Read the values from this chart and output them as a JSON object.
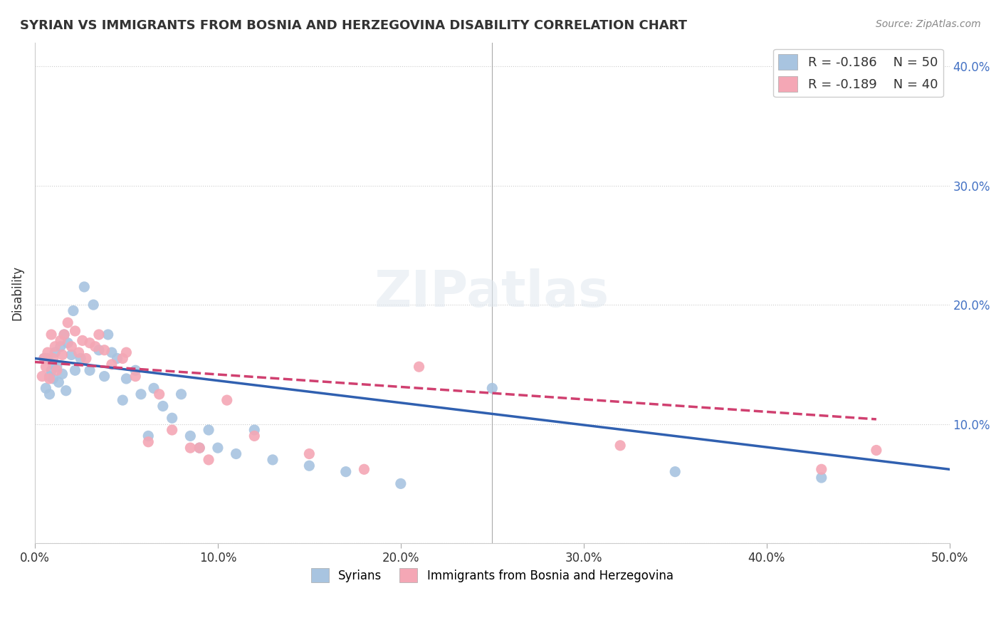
{
  "title": "SYRIAN VS IMMIGRANTS FROM BOSNIA AND HERZEGOVINA DISABILITY CORRELATION CHART",
  "source": "Source: ZipAtlas.com",
  "ylabel": "Disability",
  "xlim": [
    0.0,
    0.5
  ],
  "ylim": [
    0.0,
    0.42
  ],
  "xticks": [
    0.0,
    0.1,
    0.2,
    0.3,
    0.4,
    0.5
  ],
  "yticks": [
    0.0,
    0.1,
    0.2,
    0.3,
    0.4
  ],
  "xtick_labels": [
    "0.0%",
    "10.0%",
    "20.0%",
    "30.0%",
    "40.0%",
    "50.0%"
  ],
  "ytick_labels_right": [
    "",
    "10.0%",
    "20.0%",
    "30.0%",
    "40.0%"
  ],
  "legend_r1": "R = -0.186",
  "legend_n1": "N = 50",
  "legend_r2": "R = -0.189",
  "legend_n2": "N = 40",
  "blue_color": "#a8c4e0",
  "pink_color": "#f4a7b5",
  "blue_line_color": "#3060b0",
  "pink_line_color": "#d04070",
  "watermark": "ZIPatlas",
  "syrians_x": [
    0.005,
    0.006,
    0.007,
    0.008,
    0.008,
    0.009,
    0.01,
    0.01,
    0.011,
    0.012,
    0.013,
    0.014,
    0.015,
    0.016,
    0.017,
    0.018,
    0.02,
    0.021,
    0.022,
    0.025,
    0.027,
    0.03,
    0.032,
    0.035,
    0.038,
    0.04,
    0.042,
    0.045,
    0.048,
    0.05,
    0.055,
    0.058,
    0.062,
    0.065,
    0.07,
    0.075,
    0.08,
    0.085,
    0.09,
    0.095,
    0.1,
    0.11,
    0.12,
    0.13,
    0.15,
    0.17,
    0.2,
    0.25,
    0.35,
    0.43
  ],
  "syrians_y": [
    0.155,
    0.13,
    0.155,
    0.14,
    0.125,
    0.145,
    0.138,
    0.15,
    0.16,
    0.148,
    0.135,
    0.165,
    0.142,
    0.175,
    0.128,
    0.168,
    0.158,
    0.195,
    0.145,
    0.155,
    0.215,
    0.145,
    0.2,
    0.162,
    0.14,
    0.175,
    0.16,
    0.155,
    0.12,
    0.138,
    0.145,
    0.125,
    0.09,
    0.13,
    0.115,
    0.105,
    0.125,
    0.09,
    0.08,
    0.095,
    0.08,
    0.075,
    0.095,
    0.07,
    0.065,
    0.06,
    0.05,
    0.13,
    0.06,
    0.055
  ],
  "bosnia_x": [
    0.004,
    0.005,
    0.006,
    0.007,
    0.008,
    0.009,
    0.01,
    0.011,
    0.012,
    0.014,
    0.015,
    0.016,
    0.018,
    0.02,
    0.022,
    0.024,
    0.026,
    0.028,
    0.03,
    0.033,
    0.035,
    0.038,
    0.042,
    0.048,
    0.05,
    0.055,
    0.062,
    0.068,
    0.075,
    0.085,
    0.09,
    0.095,
    0.105,
    0.12,
    0.15,
    0.18,
    0.21,
    0.32,
    0.43,
    0.46
  ],
  "bosnia_y": [
    0.14,
    0.155,
    0.148,
    0.16,
    0.138,
    0.175,
    0.155,
    0.165,
    0.145,
    0.17,
    0.158,
    0.175,
    0.185,
    0.165,
    0.178,
    0.16,
    0.17,
    0.155,
    0.168,
    0.165,
    0.175,
    0.162,
    0.15,
    0.155,
    0.16,
    0.14,
    0.085,
    0.125,
    0.095,
    0.08,
    0.08,
    0.07,
    0.12,
    0.09,
    0.075,
    0.062,
    0.148,
    0.082,
    0.062,
    0.078
  ],
  "blue_trendline_x": [
    0.0,
    0.5
  ],
  "blue_trendline_y_start": 0.155,
  "blue_trendline_y_end": 0.062,
  "pink_trendline_x": [
    0.0,
    0.46
  ],
  "pink_trendline_y_start": 0.152,
  "pink_trendline_y_end": 0.104
}
